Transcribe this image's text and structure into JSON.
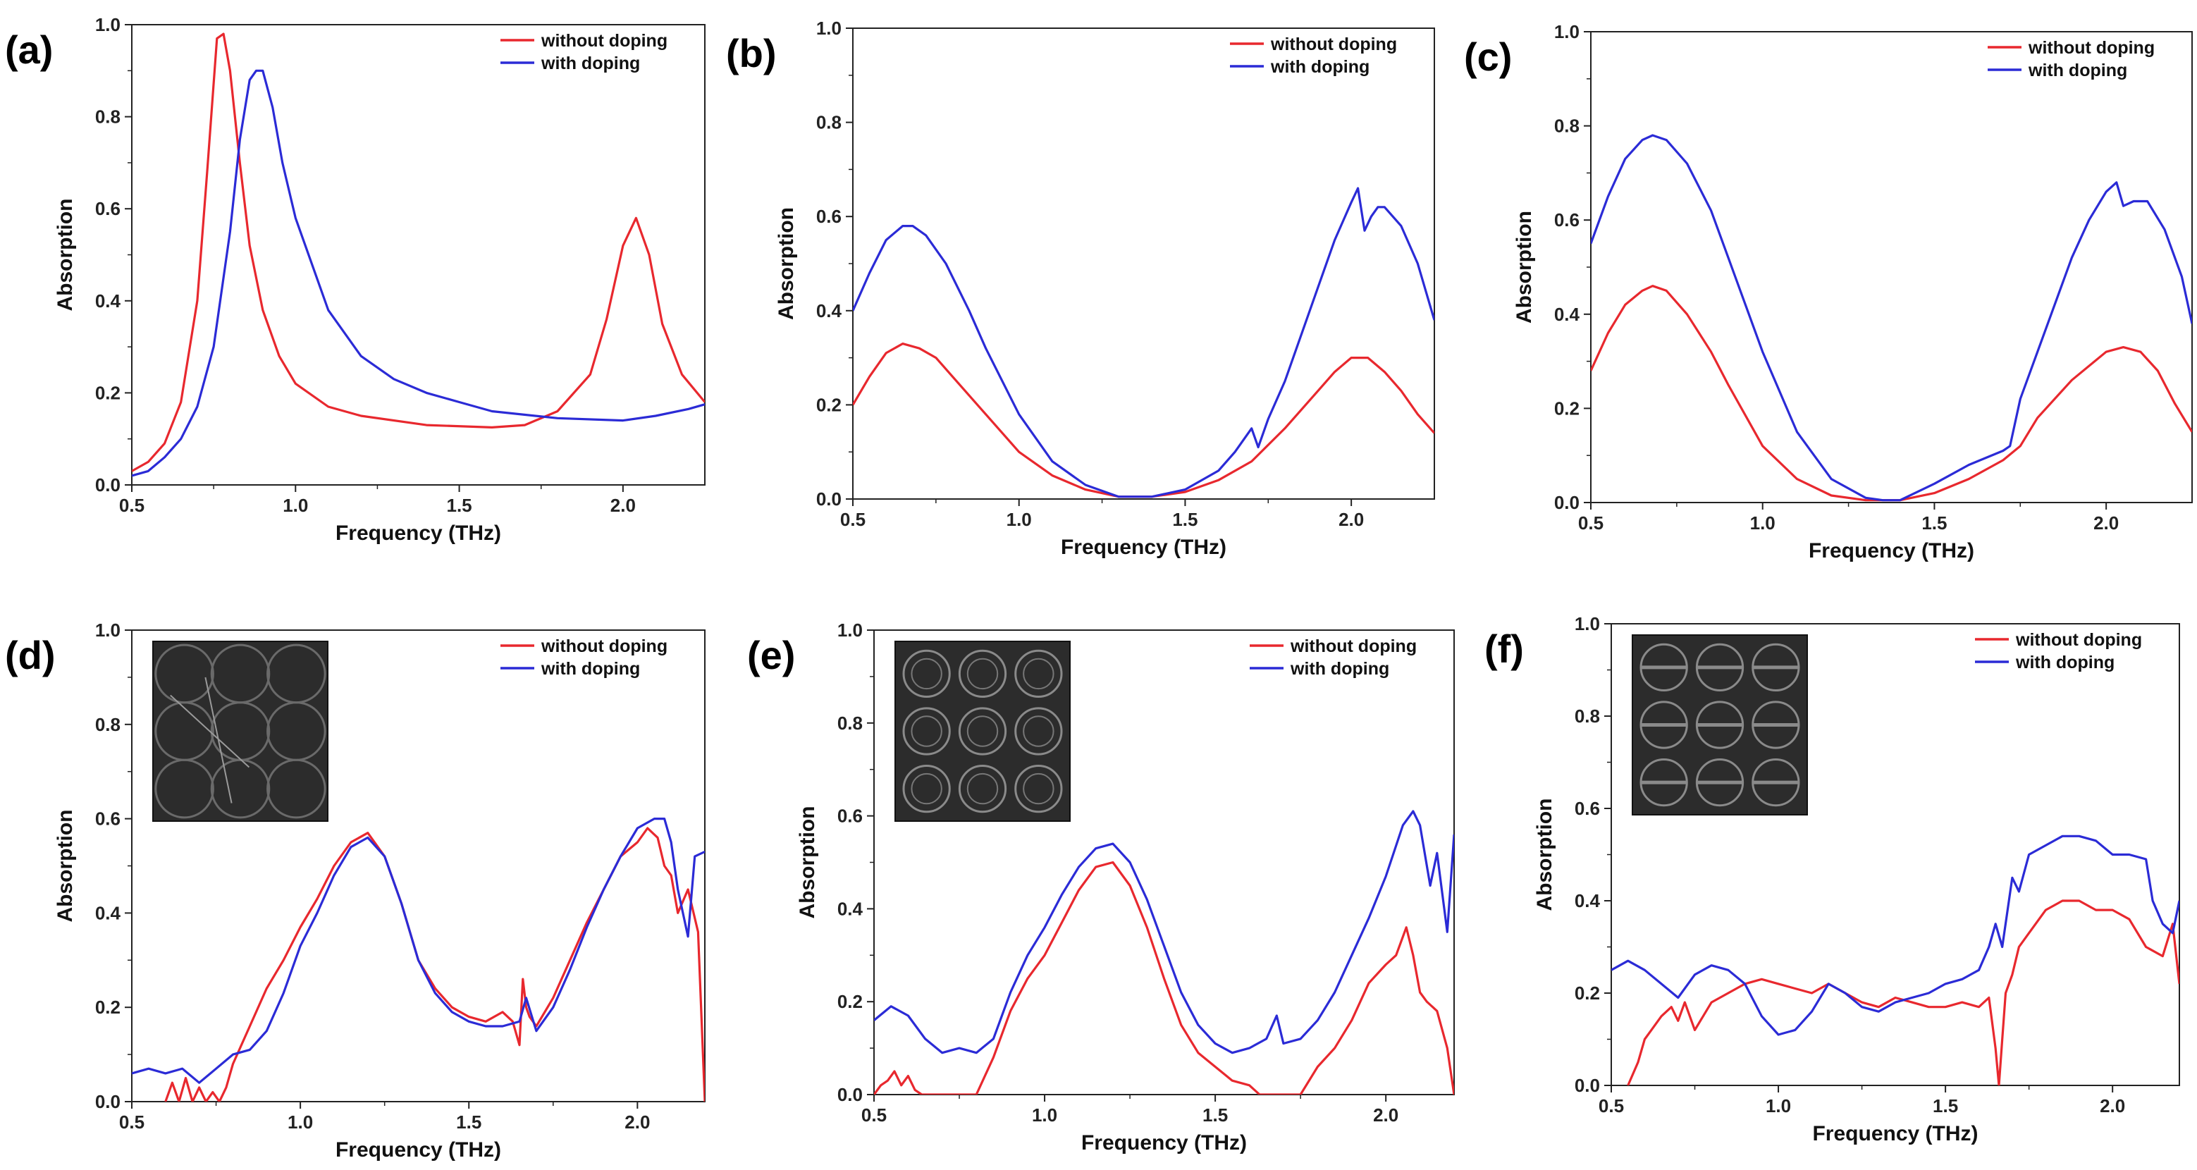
{
  "colors": {
    "without": "#e8282e",
    "with": "#2b2bd6"
  },
  "chart_data": [
    {
      "panel": "(a)",
      "type": "line",
      "xlabel": "Frequency (THz)",
      "ylabel": "Absorption",
      "xlim": [
        0.5,
        2.25
      ],
      "ylim": [
        0,
        1.0
      ],
      "xticks": [
        "0.5",
        "1.0",
        "1.5",
        "2.0"
      ],
      "yticks": [
        "0.0",
        "0.2",
        "0.4",
        "0.6",
        "0.8",
        "1.0"
      ],
      "legend": {
        "placement": "top-right",
        "entries": [
          "without doping",
          "with doping"
        ]
      },
      "series": [
        {
          "name": "without doping",
          "x": [
            0.5,
            0.55,
            0.6,
            0.65,
            0.7,
            0.73,
            0.76,
            0.78,
            0.8,
            0.83,
            0.86,
            0.9,
            0.95,
            1.0,
            1.1,
            1.2,
            1.4,
            1.6,
            1.7,
            1.8,
            1.9,
            1.95,
            2.0,
            2.04,
            2.08,
            2.12,
            2.18,
            2.25
          ],
          "y": [
            0.03,
            0.05,
            0.09,
            0.18,
            0.4,
            0.68,
            0.97,
            0.98,
            0.9,
            0.7,
            0.52,
            0.38,
            0.28,
            0.22,
            0.17,
            0.15,
            0.13,
            0.125,
            0.13,
            0.16,
            0.24,
            0.36,
            0.52,
            0.58,
            0.5,
            0.35,
            0.24,
            0.18
          ]
        },
        {
          "name": "with doping",
          "x": [
            0.5,
            0.55,
            0.6,
            0.65,
            0.7,
            0.75,
            0.8,
            0.83,
            0.86,
            0.88,
            0.9,
            0.93,
            0.96,
            1.0,
            1.1,
            1.2,
            1.3,
            1.4,
            1.5,
            1.6,
            1.8,
            2.0,
            2.1,
            2.2,
            2.25
          ],
          "y": [
            0.02,
            0.03,
            0.06,
            0.1,
            0.17,
            0.3,
            0.55,
            0.75,
            0.88,
            0.9,
            0.9,
            0.82,
            0.7,
            0.58,
            0.38,
            0.28,
            0.23,
            0.2,
            0.18,
            0.16,
            0.145,
            0.14,
            0.15,
            0.165,
            0.175
          ]
        }
      ]
    },
    {
      "panel": "(b)",
      "type": "line",
      "xlabel": "Frequency (THz)",
      "ylabel": "Absorption",
      "xlim": [
        0.5,
        2.25
      ],
      "ylim": [
        0,
        1.0
      ],
      "xticks": [
        "0.5",
        "1.0",
        "1.5",
        "2.0"
      ],
      "yticks": [
        "0.0",
        "0.2",
        "0.4",
        "0.6",
        "0.8",
        "1.0"
      ],
      "legend": {
        "placement": "top-right",
        "entries": [
          "without doping",
          "with doping"
        ]
      },
      "series": [
        {
          "name": "without doping",
          "x": [
            0.5,
            0.55,
            0.6,
            0.65,
            0.7,
            0.75,
            0.8,
            0.9,
            1.0,
            1.1,
            1.2,
            1.3,
            1.4,
            1.5,
            1.6,
            1.7,
            1.8,
            1.9,
            1.95,
            2.0,
            2.05,
            2.1,
            2.15,
            2.2,
            2.25
          ],
          "y": [
            0.2,
            0.26,
            0.31,
            0.33,
            0.32,
            0.3,
            0.26,
            0.18,
            0.1,
            0.05,
            0.02,
            0.005,
            0.005,
            0.015,
            0.04,
            0.08,
            0.15,
            0.23,
            0.27,
            0.3,
            0.3,
            0.27,
            0.23,
            0.18,
            0.14
          ]
        },
        {
          "name": "with doping",
          "x": [
            0.5,
            0.55,
            0.6,
            0.65,
            0.68,
            0.72,
            0.78,
            0.85,
            0.9,
            1.0,
            1.1,
            1.2,
            1.3,
            1.4,
            1.5,
            1.6,
            1.65,
            1.7,
            1.72,
            1.75,
            1.8,
            1.9,
            1.95,
            2.0,
            2.02,
            2.04,
            2.06,
            2.08,
            2.1,
            2.15,
            2.2,
            2.25
          ],
          "y": [
            0.4,
            0.48,
            0.55,
            0.58,
            0.58,
            0.56,
            0.5,
            0.4,
            0.32,
            0.18,
            0.08,
            0.03,
            0.005,
            0.005,
            0.02,
            0.06,
            0.1,
            0.15,
            0.11,
            0.17,
            0.25,
            0.45,
            0.55,
            0.63,
            0.66,
            0.57,
            0.6,
            0.62,
            0.62,
            0.58,
            0.5,
            0.38
          ]
        }
      ]
    },
    {
      "panel": "(c)",
      "type": "line",
      "xlabel": "Frequency (THz)",
      "ylabel": "Absorption",
      "xlim": [
        0.5,
        2.25
      ],
      "ylim": [
        0,
        1.0
      ],
      "xticks": [
        "0.5",
        "1.0",
        "1.5",
        "2.0"
      ],
      "yticks": [
        "0.0",
        "0.2",
        "0.4",
        "0.6",
        "0.8",
        "1.0"
      ],
      "legend": {
        "placement": "top-right",
        "entries": [
          "without doping",
          "with doping"
        ]
      },
      "series": [
        {
          "name": "without doping",
          "x": [
            0.5,
            0.55,
            0.6,
            0.65,
            0.68,
            0.72,
            0.78,
            0.85,
            0.9,
            1.0,
            1.1,
            1.2,
            1.3,
            1.35,
            1.4,
            1.5,
            1.6,
            1.7,
            1.75,
            1.8,
            1.9,
            2.0,
            2.05,
            2.1,
            2.15,
            2.2,
            2.25
          ],
          "y": [
            0.28,
            0.36,
            0.42,
            0.45,
            0.46,
            0.45,
            0.4,
            0.32,
            0.25,
            0.12,
            0.05,
            0.015,
            0.005,
            0.005,
            0.005,
            0.02,
            0.05,
            0.09,
            0.12,
            0.18,
            0.26,
            0.32,
            0.33,
            0.32,
            0.28,
            0.21,
            0.15
          ]
        },
        {
          "name": "with doping",
          "x": [
            0.5,
            0.55,
            0.6,
            0.65,
            0.68,
            0.72,
            0.78,
            0.85,
            0.9,
            1.0,
            1.1,
            1.2,
            1.3,
            1.35,
            1.4,
            1.5,
            1.6,
            1.7,
            1.72,
            1.75,
            1.8,
            1.9,
            1.95,
            2.0,
            2.03,
            2.05,
            2.08,
            2.12,
            2.17,
            2.22,
            2.25
          ],
          "y": [
            0.55,
            0.65,
            0.73,
            0.77,
            0.78,
            0.77,
            0.72,
            0.62,
            0.52,
            0.32,
            0.15,
            0.05,
            0.01,
            0.005,
            0.005,
            0.04,
            0.08,
            0.11,
            0.12,
            0.22,
            0.32,
            0.52,
            0.6,
            0.66,
            0.68,
            0.63,
            0.64,
            0.64,
            0.58,
            0.48,
            0.38
          ]
        }
      ]
    },
    {
      "panel": "(d)",
      "type": "line",
      "xlabel": "Frequency (THz)",
      "ylabel": "Absorption",
      "xlim": [
        0.5,
        2.2
      ],
      "ylim": [
        0,
        1.0
      ],
      "xticks": [
        "0.5",
        "1.0",
        "1.5",
        "2.0"
      ],
      "yticks": [
        "0.0",
        "0.2",
        "0.4",
        "0.6",
        "0.8",
        "1.0"
      ],
      "legend": {
        "placement": "top-right",
        "entries": [
          "without doping",
          "with doping"
        ]
      },
      "inset": "sample-micrograph-circles",
      "series": [
        {
          "name": "without doping",
          "x": [
            0.6,
            0.62,
            0.64,
            0.66,
            0.68,
            0.7,
            0.72,
            0.74,
            0.76,
            0.78,
            0.8,
            0.85,
            0.9,
            0.95,
            1.0,
            1.05,
            1.1,
            1.15,
            1.2,
            1.25,
            1.3,
            1.35,
            1.4,
            1.45,
            1.5,
            1.55,
            1.6,
            1.63,
            1.65,
            1.66,
            1.67,
            1.68,
            1.7,
            1.75,
            1.8,
            1.85,
            1.9,
            1.95,
            2.0,
            2.03,
            2.06,
            2.08,
            2.1,
            2.12,
            2.15,
            2.18,
            2.2
          ],
          "y": [
            0.0,
            0.04,
            0.0,
            0.05,
            0.0,
            0.03,
            0.0,
            0.02,
            0.0,
            0.03,
            0.08,
            0.16,
            0.24,
            0.3,
            0.37,
            0.43,
            0.5,
            0.55,
            0.57,
            0.52,
            0.42,
            0.3,
            0.24,
            0.2,
            0.18,
            0.17,
            0.19,
            0.17,
            0.12,
            0.26,
            0.2,
            0.18,
            0.16,
            0.22,
            0.3,
            0.38,
            0.45,
            0.52,
            0.55,
            0.58,
            0.56,
            0.5,
            0.48,
            0.4,
            0.45,
            0.36,
            0.0
          ]
        },
        {
          "name": "with doping",
          "x": [
            0.5,
            0.55,
            0.6,
            0.65,
            0.7,
            0.75,
            0.8,
            0.85,
            0.9,
            0.95,
            1.0,
            1.05,
            1.1,
            1.15,
            1.2,
            1.25,
            1.3,
            1.35,
            1.4,
            1.45,
            1.5,
            1.55,
            1.6,
            1.65,
            1.67,
            1.7,
            1.75,
            1.8,
            1.85,
            1.9,
            1.95,
            2.0,
            2.05,
            2.08,
            2.1,
            2.12,
            2.15,
            2.17,
            2.2
          ],
          "y": [
            0.06,
            0.07,
            0.06,
            0.07,
            0.04,
            0.07,
            0.1,
            0.11,
            0.15,
            0.23,
            0.33,
            0.4,
            0.48,
            0.54,
            0.56,
            0.52,
            0.42,
            0.3,
            0.23,
            0.19,
            0.17,
            0.16,
            0.16,
            0.17,
            0.22,
            0.15,
            0.2,
            0.28,
            0.37,
            0.45,
            0.52,
            0.58,
            0.6,
            0.6,
            0.55,
            0.45,
            0.35,
            0.52,
            0.53
          ]
        }
      ]
    },
    {
      "panel": "(e)",
      "type": "line",
      "xlabel": "Frequency (THz)",
      "ylabel": "Absorption",
      "xlim": [
        0.5,
        2.2
      ],
      "ylim": [
        0,
        1.0
      ],
      "xticks": [
        "0.5",
        "1.0",
        "1.5",
        "2.0"
      ],
      "yticks": [
        "0.0",
        "0.2",
        "0.4",
        "0.6",
        "0.8",
        "1.0"
      ],
      "legend": {
        "placement": "top-right",
        "entries": [
          "without doping",
          "with doping"
        ]
      },
      "inset": "sample-micrograph-rings",
      "series": [
        {
          "name": "without doping",
          "x": [
            0.5,
            0.52,
            0.54,
            0.56,
            0.58,
            0.6,
            0.62,
            0.64,
            0.8,
            0.85,
            0.9,
            0.95,
            1.0,
            1.05,
            1.1,
            1.15,
            1.2,
            1.25,
            1.3,
            1.35,
            1.4,
            1.45,
            1.5,
            1.55,
            1.6,
            1.63,
            1.75,
            1.8,
            1.85,
            1.9,
            1.95,
            2.0,
            2.03,
            2.06,
            2.08,
            2.1,
            2.12,
            2.15,
            2.18,
            2.2
          ],
          "y": [
            0.0,
            0.02,
            0.03,
            0.05,
            0.02,
            0.04,
            0.01,
            0.0,
            0.0,
            0.08,
            0.18,
            0.25,
            0.3,
            0.37,
            0.44,
            0.49,
            0.5,
            0.45,
            0.36,
            0.25,
            0.15,
            0.09,
            0.06,
            0.03,
            0.02,
            0.0,
            0.0,
            0.06,
            0.1,
            0.16,
            0.24,
            0.28,
            0.3,
            0.36,
            0.3,
            0.22,
            0.2,
            0.18,
            0.1,
            0.0
          ]
        },
        {
          "name": "with doping",
          "x": [
            0.5,
            0.55,
            0.6,
            0.65,
            0.7,
            0.75,
            0.8,
            0.85,
            0.9,
            0.95,
            1.0,
            1.05,
            1.1,
            1.15,
            1.2,
            1.25,
            1.3,
            1.35,
            1.4,
            1.45,
            1.5,
            1.55,
            1.6,
            1.65,
            1.68,
            1.7,
            1.75,
            1.8,
            1.85,
            1.9,
            1.95,
            2.0,
            2.05,
            2.08,
            2.1,
            2.13,
            2.15,
            2.18,
            2.2
          ],
          "y": [
            0.16,
            0.19,
            0.17,
            0.12,
            0.09,
            0.1,
            0.09,
            0.12,
            0.22,
            0.3,
            0.36,
            0.43,
            0.49,
            0.53,
            0.54,
            0.5,
            0.42,
            0.32,
            0.22,
            0.15,
            0.11,
            0.09,
            0.1,
            0.12,
            0.17,
            0.11,
            0.12,
            0.16,
            0.22,
            0.3,
            0.38,
            0.47,
            0.58,
            0.61,
            0.58,
            0.45,
            0.52,
            0.35,
            0.56
          ]
        }
      ]
    },
    {
      "panel": "(f)",
      "type": "line",
      "xlabel": "Frequency (THz)",
      "ylabel": "Absorption",
      "xlim": [
        0.5,
        2.2
      ],
      "ylim": [
        0,
        1.0
      ],
      "xticks": [
        "0.5",
        "1.0",
        "1.5",
        "2.0"
      ],
      "yticks": [
        "0.0",
        "0.2",
        "0.4",
        "0.6",
        "0.8",
        "1.0"
      ],
      "legend": {
        "placement": "top-right",
        "entries": [
          "without doping",
          "with doping"
        ]
      },
      "inset": "sample-micrograph-crossed-rings",
      "series": [
        {
          "name": "without doping",
          "x": [
            0.55,
            0.58,
            0.6,
            0.62,
            0.65,
            0.68,
            0.7,
            0.72,
            0.75,
            0.8,
            0.85,
            0.9,
            0.95,
            1.0,
            1.05,
            1.1,
            1.15,
            1.2,
            1.25,
            1.3,
            1.35,
            1.4,
            1.45,
            1.5,
            1.55,
            1.6,
            1.63,
            1.65,
            1.66,
            1.67,
            1.68,
            1.7,
            1.72,
            1.75,
            1.8,
            1.85,
            1.9,
            1.95,
            2.0,
            2.05,
            2.1,
            2.15,
            2.18,
            2.2
          ],
          "y": [
            0.0,
            0.05,
            0.1,
            0.12,
            0.15,
            0.17,
            0.14,
            0.18,
            0.12,
            0.18,
            0.2,
            0.22,
            0.23,
            0.22,
            0.21,
            0.2,
            0.22,
            0.2,
            0.18,
            0.17,
            0.19,
            0.18,
            0.17,
            0.17,
            0.18,
            0.17,
            0.19,
            0.08,
            0.0,
            0.1,
            0.2,
            0.24,
            0.3,
            0.33,
            0.38,
            0.4,
            0.4,
            0.38,
            0.38,
            0.36,
            0.3,
            0.28,
            0.35,
            0.22
          ]
        },
        {
          "name": "with doping",
          "x": [
            0.5,
            0.55,
            0.6,
            0.65,
            0.7,
            0.75,
            0.8,
            0.85,
            0.9,
            0.95,
            1.0,
            1.05,
            1.1,
            1.15,
            1.2,
            1.25,
            1.3,
            1.35,
            1.4,
            1.45,
            1.5,
            1.55,
            1.6,
            1.63,
            1.65,
            1.67,
            1.7,
            1.72,
            1.75,
            1.8,
            1.85,
            1.9,
            1.95,
            2.0,
            2.05,
            2.1,
            2.12,
            2.15,
            2.18,
            2.2
          ],
          "y": [
            0.25,
            0.27,
            0.25,
            0.22,
            0.19,
            0.24,
            0.26,
            0.25,
            0.22,
            0.15,
            0.11,
            0.12,
            0.16,
            0.22,
            0.2,
            0.17,
            0.16,
            0.18,
            0.19,
            0.2,
            0.22,
            0.23,
            0.25,
            0.3,
            0.35,
            0.3,
            0.45,
            0.42,
            0.5,
            0.52,
            0.54,
            0.54,
            0.53,
            0.5,
            0.5,
            0.49,
            0.4,
            0.35,
            0.33,
            0.4
          ]
        }
      ]
    }
  ]
}
